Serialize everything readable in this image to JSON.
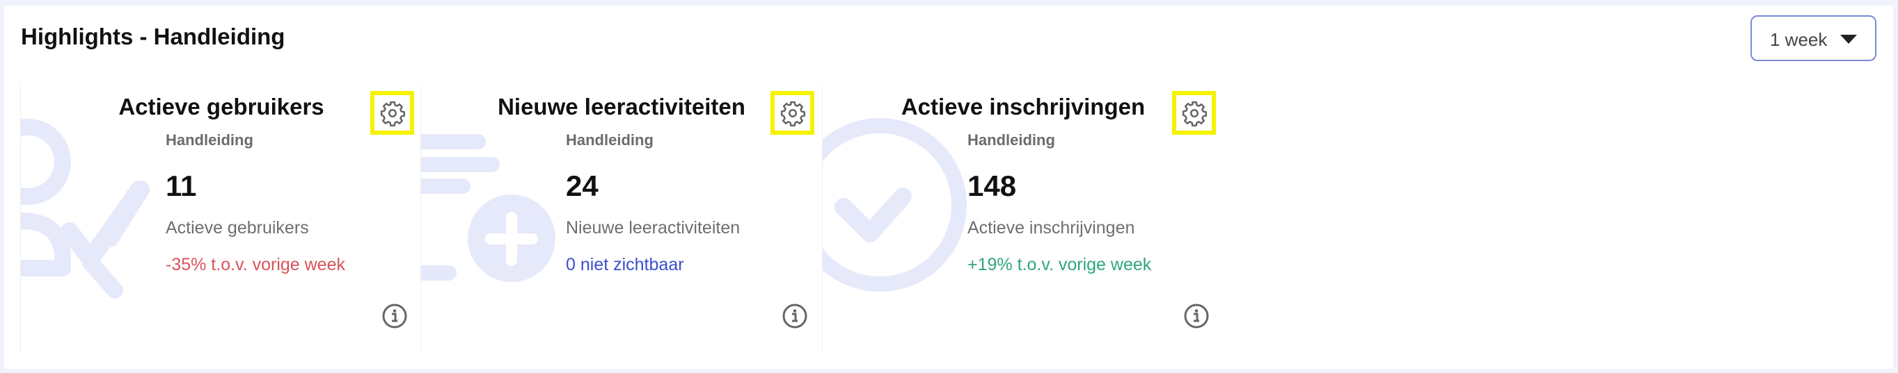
{
  "header": {
    "title": "Highlights - Handleiding"
  },
  "period_dropdown": {
    "selected": "1 week"
  },
  "colors": {
    "negative": "#d9535a",
    "neutral_link": "#3a4fd0",
    "positive": "#2fa67e",
    "highlight_box": "#f5f200",
    "illustration": "#e6e9fa"
  },
  "cards": [
    {
      "title": "Actieve gebruikers",
      "subtitle": "Handleiding",
      "value": "11",
      "label": "Actieve gebruikers",
      "change": "-35% t.o.v. vorige week",
      "change_type": "negative",
      "illustration": "user-check"
    },
    {
      "title": "Nieuwe leeractiviteiten",
      "subtitle": "Handleiding",
      "value": "24",
      "label": "Nieuwe leeractiviteiten",
      "change": "0 niet zichtbaar",
      "change_type": "neutral",
      "illustration": "list-plus"
    },
    {
      "title": "Actieve inschrijvingen",
      "subtitle": "Handleiding",
      "value": "148",
      "label": "Actieve inschrijvingen",
      "change": "+19% t.o.v. vorige week",
      "change_type": "positive",
      "illustration": "circle-check"
    }
  ]
}
